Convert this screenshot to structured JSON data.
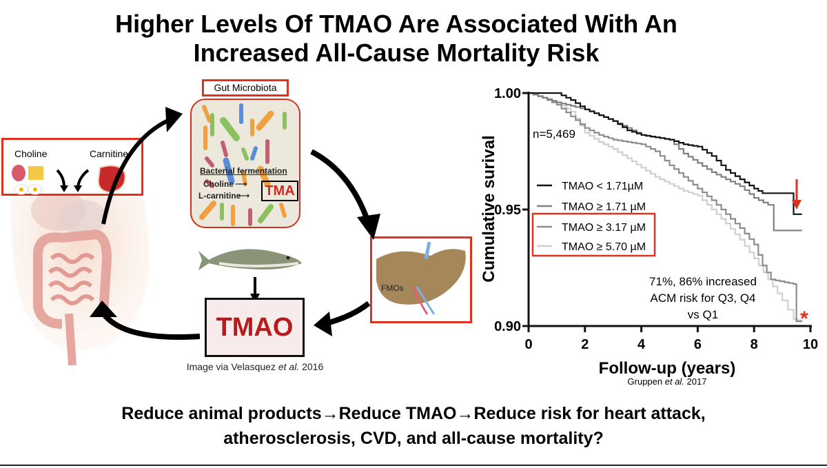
{
  "slide": {
    "title_line1": "Higher Levels Of TMAO Are Associated With An",
    "title_line2": "Increased All-Cause Mortality Risk",
    "bottom_line1": "Reduce animal products→Reduce TMAO→Reduce risk for heart attack,",
    "bottom_line2": "atherosclerosis, CVD, and all-cause mortality?"
  },
  "diagram": {
    "choline_label": "Choline",
    "carnitine_label": "Carnitine",
    "gut_microbiota_label": "Gut Microbiota",
    "fermentation_label": "Bacterial fermentation",
    "choline_arrow_label": "Choline",
    "lcarnitine_arrow_label": "L-carnitine",
    "tma_label": "TMA",
    "tmao_label": "TMAO",
    "fmos_label": "FMOs",
    "caption_prefix": "Image via Velasquez ",
    "caption_italic": "et al.",
    "caption_suffix": " 2016",
    "colors": {
      "highlight_box": "#e0301e",
      "tma_text": "#d42a1c",
      "tmao_text": "#b71c1c"
    }
  },
  "chart_data": {
    "type": "line",
    "subtype": "kaplan-meier step",
    "xlabel": "Follow-up (years)",
    "ylabel": "Cumulative surival",
    "xlim": [
      0,
      10
    ],
    "ylim": [
      0.9,
      1.0
    ],
    "xticks": [
      "0",
      "2",
      "4",
      "6",
      "8",
      "10"
    ],
    "yticks": [
      "0.90",
      "0.95",
      "1.00"
    ],
    "grid": false,
    "legend_placement": "middle-left",
    "annotation_n": "n=5,469",
    "annotation_line1": "71%, 86% increased",
    "annotation_line2": "ACM risk for Q3, Q4",
    "annotation_line3": "vs Q1",
    "asterisk": "*",
    "source_prefix": "Gruppen ",
    "source_italic": "et al.",
    "source_suffix": " 2017",
    "series": [
      {
        "name": "TMAO < 1.71µM",
        "color": "#111111",
        "x": [
          0,
          1,
          1.5,
          2,
          3,
          3.5,
          4,
          5,
          5.5,
          6,
          6.5,
          7,
          7.5,
          8,
          8.3,
          9.4,
          9.4,
          9.7
        ],
        "y": [
          1.0,
          1.0,
          0.997,
          0.993,
          0.988,
          0.984,
          0.982,
          0.98,
          0.978,
          0.977,
          0.973,
          0.967,
          0.963,
          0.959,
          0.957,
          0.957,
          0.948,
          0.948
        ]
      },
      {
        "name": "TMAO ≥ 1.71 µM",
        "color": "#808080",
        "x": [
          0,
          0.5,
          1,
          2,
          3,
          3.5,
          4,
          5,
          5.5,
          6,
          6.5,
          7,
          7.5,
          8,
          8.5,
          8.7,
          8.7,
          9.7
        ],
        "y": [
          1.0,
          0.998,
          0.996,
          0.993,
          0.988,
          0.985,
          0.982,
          0.98,
          0.974,
          0.97,
          0.966,
          0.963,
          0.96,
          0.955,
          0.952,
          0.951,
          0.941,
          0.941
        ]
      },
      {
        "name": "TMAO ≥ 3.17 µM",
        "color": "#8c8c8c",
        "x": [
          0,
          0.5,
          1,
          1.5,
          2,
          2.5,
          3,
          4,
          4.5,
          5,
          5.5,
          6,
          6.5,
          7,
          7.5,
          8,
          8.3,
          8.6,
          9.4,
          9.5,
          9.7
        ],
        "y": [
          1.0,
          0.998,
          0.995,
          0.99,
          0.985,
          0.982,
          0.98,
          0.978,
          0.975,
          0.969,
          0.964,
          0.959,
          0.954,
          0.948,
          0.942,
          0.935,
          0.926,
          0.92,
          0.918,
          0.902,
          0.902
        ]
      },
      {
        "name": "TMAO ≥ 5.70 µM",
        "color": "#cfcfcf",
        "x": [
          0,
          0.5,
          1,
          1.5,
          2,
          2.5,
          3,
          3.5,
          4,
          4.5,
          5,
          5.5,
          6,
          6.5,
          7,
          7.5,
          8,
          8.5,
          9,
          9.4,
          9.7
        ],
        "y": [
          1.0,
          0.998,
          0.996,
          0.992,
          0.983,
          0.979,
          0.976,
          0.972,
          0.968,
          0.964,
          0.961,
          0.958,
          0.956,
          0.95,
          0.944,
          0.937,
          0.929,
          0.92,
          0.911,
          0.903,
          0.902
        ]
      }
    ],
    "highlighted_legend_entries": [
      "TMAO ≥ 3.17 µM",
      "TMAO ≥ 5.70 µM"
    ],
    "colors": {
      "highlight_box": "#e0301e",
      "arrow": "#e0301e",
      "asterisk": "#e0301e"
    }
  }
}
